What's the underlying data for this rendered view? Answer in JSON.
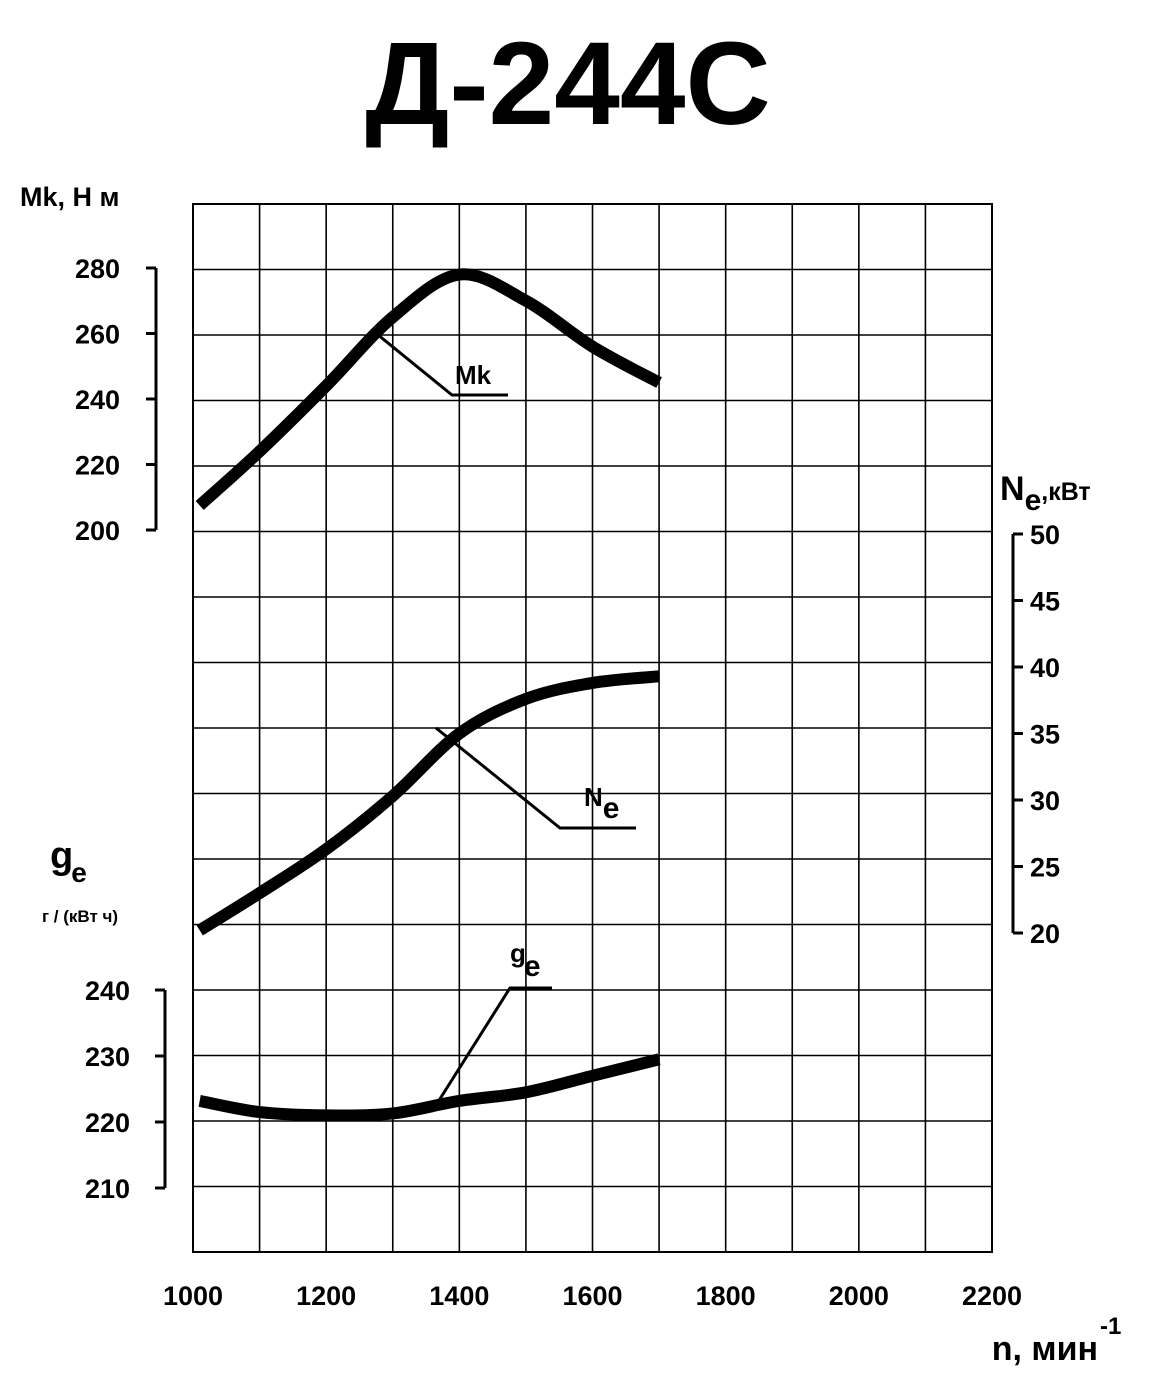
{
  "chart_data": {
    "type": "line",
    "title": "Д-244С",
    "x": {
      "label": "n, мин",
      "label_sup": "-1",
      "ticks": [
        "1000",
        "1200",
        "1400",
        "1600",
        "1800",
        "2000",
        "2200"
      ],
      "range": [
        1000,
        2200
      ]
    },
    "axes": {
      "mk": {
        "label": "Mk, Н м",
        "ticks": [
          "200",
          "220",
          "240",
          "260",
          "280"
        ],
        "range": [
          200,
          280
        ],
        "side": "left-top"
      },
      "ne": {
        "label_main": "N",
        "label_sub": "e",
        "label_unit": ",кВт",
        "ticks": [
          "20",
          "25",
          "30",
          "35",
          "40",
          "45",
          "50"
        ],
        "range": [
          20,
          50
        ],
        "side": "right"
      },
      "ge": {
        "label_main": "g",
        "label_sub": "e",
        "label_unit": "г / (кВт ч)",
        "ticks": [
          "210",
          "220",
          "230",
          "240"
        ],
        "range": [
          210,
          240
        ],
        "side": "left-bottom"
      }
    },
    "series": [
      {
        "name": "Mk",
        "axis": "mk",
        "label_main": "Mk",
        "label_sub": "",
        "x": [
          1010,
          1100,
          1200,
          1300,
          1400,
          1500,
          1600,
          1700
        ],
        "values": [
          207.5,
          224,
          244,
          265,
          278,
          270,
          256,
          245
        ]
      },
      {
        "name": "Ne",
        "axis": "ne",
        "label_main": "N",
        "label_sub": "e",
        "x": [
          1010,
          1100,
          1200,
          1300,
          1400,
          1500,
          1600,
          1700
        ],
        "values": [
          20.2,
          23,
          26.3,
          30.3,
          35,
          37.6,
          38.8,
          39.3
        ]
      },
      {
        "name": "ge",
        "axis": "ge",
        "label_main": "g",
        "label_sub": "e",
        "x": [
          1010,
          1100,
          1200,
          1300,
          1400,
          1500,
          1600,
          1700
        ],
        "values": [
          223.2,
          221.5,
          221,
          221.3,
          223.2,
          224.5,
          227,
          229.5
        ]
      }
    ],
    "grid": true
  }
}
